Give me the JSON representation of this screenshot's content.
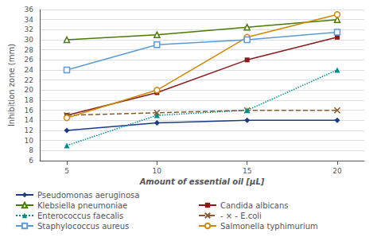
{
  "chart_data": {
    "type": "line",
    "xlabel": "Amount of essential oil [μL]",
    "ylabel": "Inhibition zone (mm)",
    "x": [
      5,
      10,
      15,
      20
    ],
    "series": [
      {
        "name": "Pseudomonas aeruginosa",
        "color": "#1a3a8a",
        "marker": "diamond",
        "line_style": "solid",
        "values": [
          12,
          13.5,
          14,
          14
        ]
      },
      {
        "name": "Candida albicans",
        "color": "#8b1a1a",
        "marker": "square",
        "line_style": "solid",
        "values": [
          15,
          19.5,
          26,
          30.5
        ]
      },
      {
        "name": "Klebsiella pneumoniae",
        "color": "#4a7a00",
        "marker": "open_triangle",
        "line_style": "solid",
        "values": [
          30,
          31,
          32.5,
          34
        ]
      },
      {
        "name": "- × - E.coli",
        "color": "#8b5a2b",
        "marker": "x",
        "line_style": "dashed",
        "values": [
          15,
          15.5,
          16,
          16
        ]
      },
      {
        "name": "Enterococcus faecalis",
        "color": "#008b8b",
        "marker": "triangle",
        "line_style": "dotted",
        "values": [
          9,
          15,
          16,
          24
        ]
      },
      {
        "name": "Salmonella typhimurium",
        "color": "#cc8800",
        "marker": "open_circle",
        "line_style": "solid",
        "values": [
          14.5,
          20,
          30.5,
          35
        ]
      },
      {
        "name": "Staphylococcus aureus",
        "color": "#5b9bd5",
        "marker": "open_square",
        "line_style": "solid",
        "values": [
          24,
          29,
          30,
          31.5
        ]
      }
    ],
    "xlim": [
      3.5,
      21.5
    ],
    "xticks": [
      5,
      10,
      15,
      20
    ],
    "ylim": [
      6,
      36
    ],
    "yticks": [
      6,
      8,
      10,
      12,
      14,
      16,
      18,
      20,
      22,
      24,
      26,
      28,
      30,
      32,
      34,
      36
    ],
    "grid": true,
    "legend": "bottom"
  }
}
